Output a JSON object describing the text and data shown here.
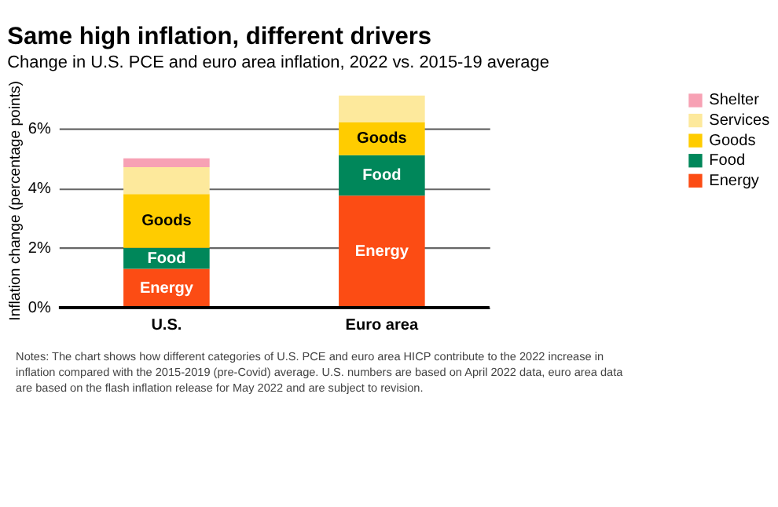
{
  "chart_data": {
    "type": "bar",
    "stacked": true,
    "title": "Same high inflation, different drivers",
    "subtitle": "Change in U.S. PCE and euro area inflation, 2022 vs. 2015-19 average",
    "ylabel": "Inflation change (percentage points)",
    "categories": [
      "U.S.",
      "Euro area"
    ],
    "series": [
      {
        "name": "Energy",
        "color": "#fc4c14",
        "values": [
          1.3,
          3.75
        ],
        "value_labels": [
          "Energy",
          "Energy"
        ]
      },
      {
        "name": "Food",
        "color": "#00875a",
        "values": [
          0.7,
          1.35
        ],
        "value_labels": [
          "Food",
          "Food"
        ]
      },
      {
        "name": "Goods",
        "color": "#ffcc00",
        "values": [
          1.8,
          1.1
        ],
        "value_labels": [
          "Goods",
          "Goods"
        ]
      },
      {
        "name": "Services",
        "color": "#fde99c",
        "values": [
          0.9,
          0.9
        ]
      },
      {
        "name": "Shelter",
        "color": "#f7a1b4",
        "values": [
          0.3,
          0
        ]
      }
    ],
    "ylim": [
      0,
      7.2
    ],
    "yticks": [
      {
        "value": 0,
        "label": "0%"
      },
      {
        "value": 2,
        "label": "2%"
      },
      {
        "value": 4,
        "label": "4%"
      },
      {
        "value": 6,
        "label": "6%"
      }
    ],
    "grid": "y",
    "legend": "right",
    "annotations": [
      "Notes: The chart shows how different categories of U.S. PCE and euro area HICP contribute to the 2022 increase in inflation compared with the 2015-2019 (pre-Covid) average. U.S. numbers are based on April 2022 data, euro area data are based on the flash inflation release for May 2022 and are subject to revision."
    ]
  }
}
